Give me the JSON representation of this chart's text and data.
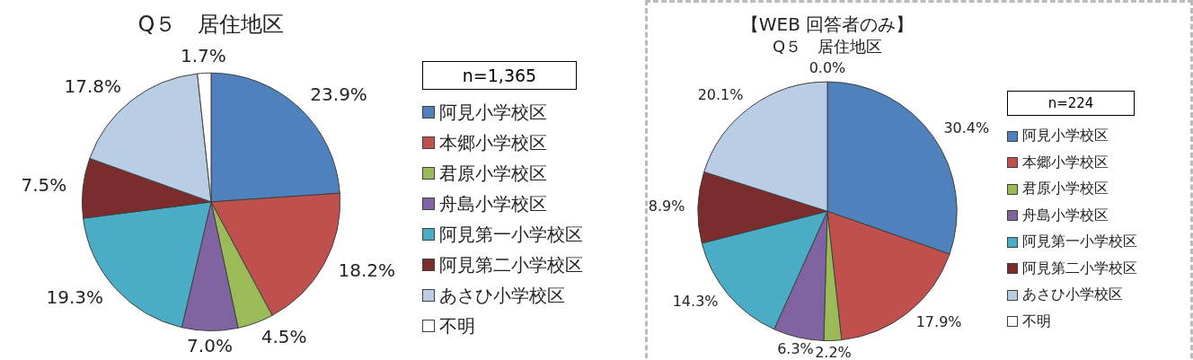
{
  "chart_data": [
    {
      "type": "pie",
      "title": "Q５　居住地区",
      "categories": [
        "阿見小学校区",
        "本郷小学校区",
        "君原小学校区",
        "舟島小学校区",
        "阿見第一小学校区",
        "阿見第二小学校区",
        "あさひ小学校区",
        "不明"
      ],
      "values": [
        23.9,
        18.2,
        4.5,
        7.0,
        19.3,
        7.5,
        17.8,
        1.7
      ],
      "colors": [
        "#4f81bd",
        "#c0504d",
        "#9bbb59",
        "#8064a2",
        "#4bacc6",
        "#7b2c2c",
        "#b9cde5",
        "#ffffff"
      ],
      "value_labels": [
        "23.9%",
        "18.2%",
        "4.5%",
        "7.0%",
        "19.3%",
        "7.5%",
        "17.8%",
        "1.7%"
      ],
      "legend": "right",
      "annotations": [
        "n=1,365"
      ]
    },
    {
      "type": "pie",
      "title": "【WEB 回答者のみ】",
      "subtitle": "Q５　居住地区",
      "categories": [
        "阿見小学校区",
        "本郷小学校区",
        "君原小学校区",
        "舟島小学校区",
        "阿見第一小学校区",
        "阿見第二小学校区",
        "あさひ小学校区",
        "不明"
      ],
      "values": [
        30.4,
        17.9,
        2.2,
        6.3,
        14.3,
        8.9,
        20.1,
        0.0
      ],
      "colors": [
        "#4f81bd",
        "#c0504d",
        "#9bbb59",
        "#8064a2",
        "#4bacc6",
        "#7b2c2c",
        "#b9cde5",
        "#ffffff"
      ],
      "value_labels": [
        "30.4%",
        "17.9%",
        "2.2%",
        "6.3%",
        "14.3%",
        "8.9%",
        "20.1%",
        "0.0%"
      ],
      "legend": "right",
      "annotations": [
        "n=224"
      ]
    }
  ]
}
